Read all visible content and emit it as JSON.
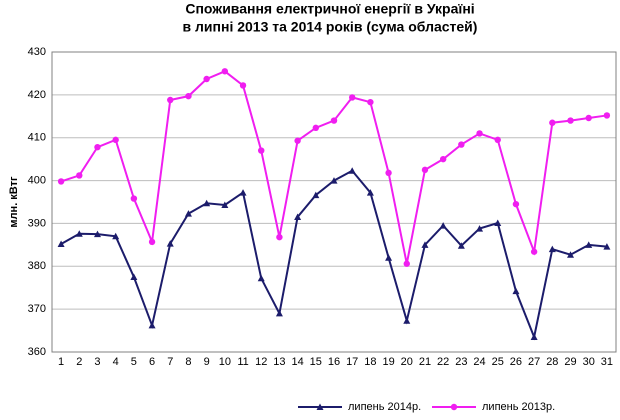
{
  "chart_data": {
    "type": "line",
    "title": [
      "Споживання електричної енергії в Україні",
      "в липні 2013 та 2014 років (сума областей)"
    ],
    "y_label": "млн. кВтг",
    "categories": [
      "1",
      "2",
      "3",
      "4",
      "5",
      "6",
      "7",
      "8",
      "9",
      "10",
      "11",
      "12",
      "13",
      "14",
      "15",
      "16",
      "17",
      "18",
      "19",
      "20",
      "21",
      "22",
      "23",
      "24",
      "25",
      "26",
      "27",
      "28",
      "29",
      "30",
      "31"
    ],
    "series": [
      {
        "name": "липень 2014р.",
        "color": "#1c1c6b",
        "marker": "triangle",
        "values": [
          385.2,
          387.6,
          387.5,
          387.0,
          377.5,
          366.2,
          385.3,
          392.3,
          394.7,
          394.3,
          397.2,
          377.2,
          369.0,
          391.5,
          396.6,
          400.0,
          402.3,
          397.2,
          382.0,
          367.3,
          385.0,
          389.5,
          384.8,
          388.8,
          390.1,
          374.2,
          363.5,
          384.0,
          382.7,
          385.0,
          384.6
        ]
      },
      {
        "name": "липень 2013р.",
        "color": "#f01ef0",
        "marker": "circle",
        "values": [
          399.8,
          401.2,
          407.8,
          409.5,
          395.8,
          385.7,
          418.8,
          419.7,
          423.7,
          425.5,
          422.2,
          407.0,
          386.8,
          409.3,
          412.3,
          414.0,
          419.4,
          418.3,
          401.8,
          380.6,
          402.5,
          405.0,
          408.4,
          411.0,
          409.5,
          394.5,
          383.4,
          413.5,
          414.0,
          414.6,
          415.2
        ]
      }
    ],
    "ylim": [
      360,
      430
    ],
    "yticks": [
      360,
      370,
      380,
      390,
      400,
      410,
      420,
      430
    ],
    "grid": true,
    "legend": "bottom"
  }
}
